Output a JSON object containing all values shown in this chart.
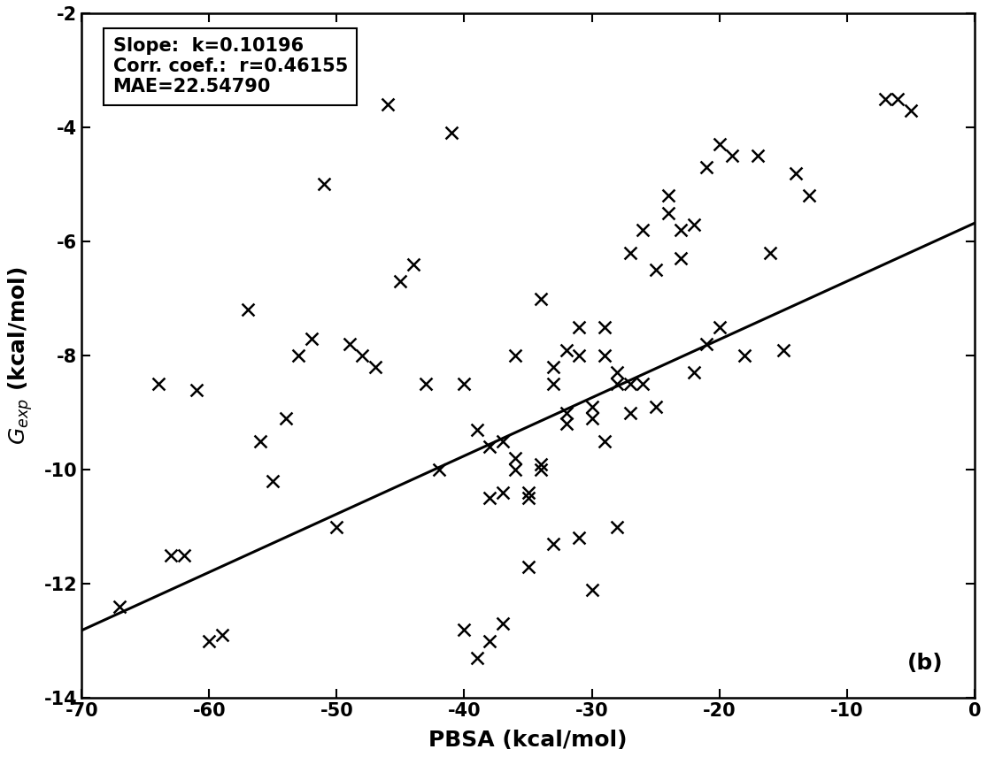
{
  "scatter_x": [
    -67,
    -64,
    -63,
    -62,
    -61,
    -60,
    -59,
    -57,
    -56,
    -55,
    -54,
    -53,
    -52,
    -51,
    -50,
    -49,
    -48,
    -47,
    -46,
    -45,
    -44,
    -43,
    -42,
    -41,
    -40,
    -40,
    -39,
    -39,
    -38,
    -38,
    -38,
    -37,
    -37,
    -37,
    -36,
    -36,
    -36,
    -35,
    -35,
    -35,
    -34,
    -34,
    -34,
    -33,
    -33,
    -33,
    -32,
    -32,
    -32,
    -31,
    -31,
    -31,
    -30,
    -30,
    -30,
    -29,
    -29,
    -29,
    -28,
    -28,
    -28,
    -27,
    -27,
    -27,
    -26,
    -26,
    -25,
    -25,
    -24,
    -24,
    -23,
    -23,
    -22,
    -22,
    -21,
    -21,
    -20,
    -20,
    -19,
    -18,
    -17,
    -16,
    -15,
    -14,
    -13,
    -7,
    -6,
    -5
  ],
  "scatter_y": [
    -12.4,
    -8.5,
    -11.5,
    -11.5,
    -8.6,
    -13.0,
    -12.9,
    -7.2,
    -9.5,
    -10.2,
    -9.1,
    -8.0,
    -7.7,
    -5.0,
    -11.0,
    -7.8,
    -8.0,
    -8.2,
    -3.6,
    -6.7,
    -6.4,
    -8.5,
    -10.0,
    -4.1,
    -8.5,
    -12.8,
    -9.3,
    -13.3,
    -9.6,
    -10.5,
    -13.0,
    -10.4,
    -12.7,
    -9.5,
    -10.0,
    -9.8,
    -8.0,
    -10.4,
    -10.5,
    -11.7,
    -9.9,
    -10.0,
    -7.0,
    -8.2,
    -8.5,
    -11.3,
    -7.9,
    -9.0,
    -9.2,
    -7.5,
    -8.0,
    -11.2,
    -8.9,
    -9.1,
    -12.1,
    -8.0,
    -9.5,
    -7.5,
    -8.3,
    -8.5,
    -11.0,
    -8.5,
    -9.0,
    -6.2,
    -8.5,
    -5.8,
    -6.5,
    -8.9,
    -5.5,
    -5.2,
    -5.8,
    -6.3,
    -5.7,
    -8.3,
    -4.7,
    -7.8,
    -7.5,
    -4.3,
    -4.5,
    -8.0,
    -4.5,
    -6.2,
    -7.9,
    -4.8,
    -5.2,
    -3.5,
    -3.5,
    -3.7
  ],
  "line_slope": 0.10196,
  "line_intercept": -5.68,
  "xlim": [
    -70,
    0
  ],
  "ylim": [
    -14,
    -2
  ],
  "xlabel": "PBSA (kcal/mol)",
  "ylabel": "$\\mathit{G}_{exp}$ (kcal/mol)",
  "panel_label": "(b)",
  "scatter_color": "#000000",
  "line_color": "#000000",
  "background_color": "#ffffff",
  "xticks": [
    -70,
    -60,
    -50,
    -40,
    -30,
    -20,
    -10,
    0
  ],
  "yticks": [
    -14,
    -12,
    -10,
    -8,
    -6,
    -4,
    -2
  ]
}
